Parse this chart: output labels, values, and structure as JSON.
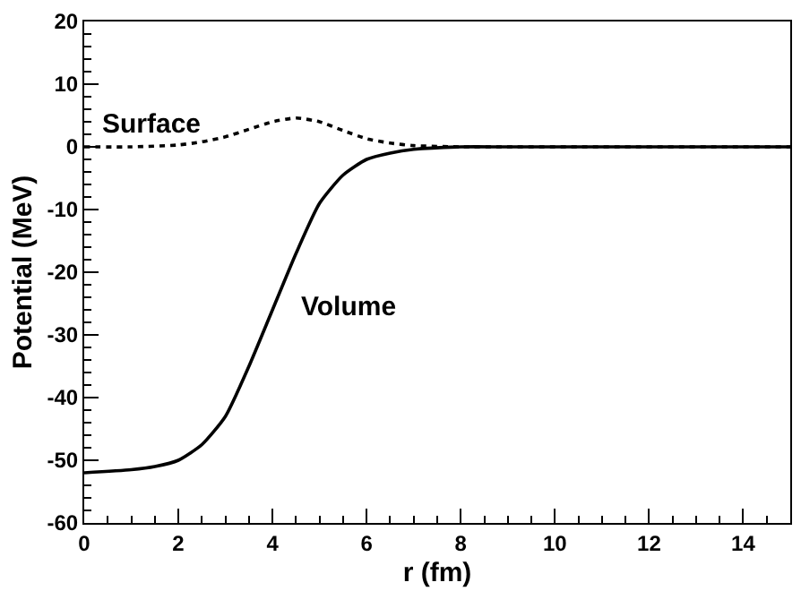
{
  "chart_data": {
    "type": "line",
    "xlabel": "r (fm)",
    "ylabel": "Potential (MeV)",
    "xlim": [
      0,
      15
    ],
    "xticks": [
      0,
      2,
      4,
      6,
      8,
      10,
      12,
      14
    ],
    "ylim": [
      -60,
      20
    ],
    "yticks": [
      -60,
      -50,
      -40,
      -30,
      -20,
      -10,
      0,
      10,
      20
    ],
    "legend": false,
    "marker": "none",
    "series": [
      {
        "name": "Surface",
        "color": "#000000",
        "line_style": "dotted",
        "x": [
          0,
          1,
          2,
          2.5,
          3,
          3.5,
          4,
          4.5,
          5,
          5.5,
          6,
          6.5,
          7,
          8,
          9,
          15
        ],
        "values": [
          0,
          0,
          0.3,
          0.8,
          1.6,
          2.8,
          4,
          4.6,
          4,
          2.6,
          1.3,
          0.6,
          0.2,
          0,
          0,
          0
        ]
      },
      {
        "name": "Volume",
        "color": "#000000",
        "line_style": "solid",
        "x": [
          0,
          1,
          1.5,
          2,
          2.5,
          3,
          3.5,
          4,
          4.5,
          5,
          5.5,
          6,
          6.5,
          7,
          8,
          9,
          15
        ],
        "values": [
          -52,
          -51.5,
          -51,
          -50,
          -47.5,
          -43,
          -35,
          -26,
          -17,
          -9,
          -4.5,
          -2,
          -1,
          -0.4,
          0,
          0,
          0
        ]
      }
    ]
  }
}
